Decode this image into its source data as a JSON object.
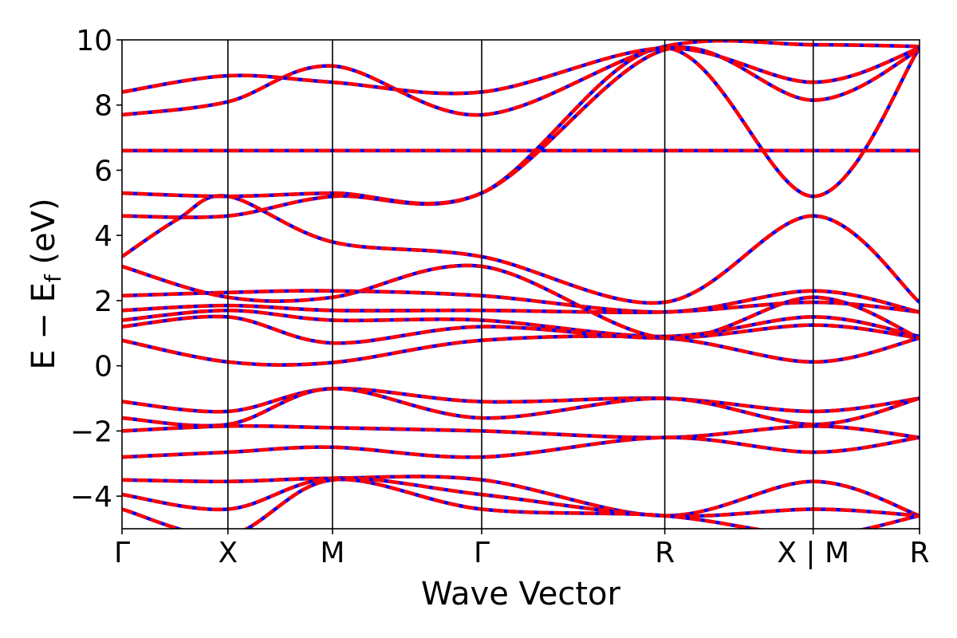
{
  "chart_data": {
    "type": "line",
    "title": "",
    "xlabel": "Wave Vector",
    "ylabel": "E − E",
    "ylabel_subscript": "f",
    "ylabel_unit": "(eV)",
    "ylim": [
      -5,
      10
    ],
    "yticks": [
      -4,
      -2,
      0,
      2,
      4,
      6,
      8,
      10
    ],
    "ytick_labels": [
      "−4",
      "−2",
      "0",
      "2",
      "4",
      "6",
      "8",
      "10"
    ],
    "xlim": [
      0,
      1
    ],
    "xticks": [
      {
        "x": 0.0,
        "label": "Γ"
      },
      {
        "x": 0.1328,
        "label": "X"
      },
      {
        "x": 0.2639,
        "label": "M"
      },
      {
        "x": 0.451,
        "label": "Γ"
      },
      {
        "x": 0.6806,
        "label": "R"
      },
      {
        "x": 0.8667,
        "label": "X | M"
      },
      {
        "x": 1.0,
        "label": "R"
      }
    ],
    "path_boundaries": [
      0.1328,
      0.2639,
      0.451,
      0.6806,
      0.8667
    ],
    "grid": false,
    "legend": "none",
    "series_styles": [
      {
        "color": "#0000ff",
        "linestyle": "solid"
      },
      {
        "color": "#ff0000",
        "linestyle": "dashed"
      }
    ],
    "bands": [
      {
        "x": [
          0,
          0.1328,
          0.2639,
          0.451,
          0.6806,
          0.8667,
          1.0
        ],
        "y": [
          6.6,
          6.6,
          6.6,
          6.6,
          6.6,
          6.6,
          6.6
        ]
      },
      {
        "x": [
          0,
          0.1328,
          0.2639,
          0.451,
          0.6806,
          0.8667,
          1.0
        ],
        "y": [
          0.78,
          0.12,
          0.1,
          0.78,
          0.85,
          0.12,
          0.85
        ]
      },
      {
        "x": [
          0,
          0.07,
          0.1328,
          0.2639,
          0.451,
          0.6806,
          0.8667,
          1.0
        ],
        "y": [
          3.35,
          4.5,
          5.2,
          3.8,
          3.35,
          1.95,
          4.6,
          1.95
        ]
      },
      {
        "x": [
          0,
          0.1328,
          0.2639,
          0.451,
          0.6806,
          0.8667,
          1.0
        ],
        "y": [
          4.6,
          4.6,
          5.2,
          5.3,
          9.75,
          5.2,
          9.75
        ]
      },
      {
        "x": [
          0,
          0.1328,
          0.2639,
          0.451,
          0.6806,
          0.8667,
          1.0
        ],
        "y": [
          5.3,
          5.2,
          5.3,
          5.3,
          9.7,
          8.15,
          9.7
        ]
      },
      {
        "x": [
          0,
          0.1328,
          0.2639,
          0.451,
          0.6806,
          0.8667,
          1.0
        ],
        "y": [
          7.7,
          8.1,
          9.2,
          7.7,
          9.8,
          9.85,
          9.8
        ]
      },
      {
        "x": [
          0,
          0.1328,
          0.2639,
          0.451,
          0.6806,
          0.8667,
          1.0
        ],
        "y": [
          8.4,
          8.9,
          8.7,
          8.4,
          9.75,
          8.7,
          9.75
        ]
      },
      {
        "x": [
          0,
          0.1328,
          0.2639,
          0.451,
          0.6806,
          0.8667,
          1.0
        ],
        "y": [
          2.15,
          2.25,
          2.3,
          2.15,
          1.65,
          2.3,
          1.65
        ]
      },
      {
        "x": [
          0,
          0.1328,
          0.2639,
          0.451,
          0.6806,
          0.8667,
          1.0
        ],
        "y": [
          1.7,
          1.85,
          1.7,
          1.7,
          1.65,
          1.95,
          1.65
        ]
      },
      {
        "x": [
          0,
          0.1328,
          0.2639,
          0.451,
          0.6806,
          0.8667,
          1.0
        ],
        "y": [
          1.4,
          1.7,
          1.4,
          1.4,
          0.9,
          1.5,
          0.9
        ]
      },
      {
        "x": [
          0,
          0.1328,
          0.2639,
          0.451,
          0.6806,
          0.8667,
          1.0
        ],
        "y": [
          1.2,
          1.5,
          0.7,
          1.2,
          0.85,
          1.25,
          0.85
        ]
      },
      {
        "x": [
          0,
          0.1328,
          0.2639,
          0.451,
          0.6806,
          0.8667,
          1.0
        ],
        "y": [
          3.05,
          2.1,
          2.1,
          3.05,
          0.85,
          2.1,
          0.85
        ]
      },
      {
        "x": [
          0,
          0.1328,
          0.2639,
          0.451,
          0.6806,
          0.8667,
          1.0
        ],
        "y": [
          -1.1,
          -1.4,
          -0.7,
          -1.1,
          -1.0,
          -1.4,
          -1.0
        ]
      },
      {
        "x": [
          0,
          0.1328,
          0.2639,
          0.451,
          0.6806,
          0.8667,
          1.0
        ],
        "y": [
          -1.6,
          -1.8,
          -0.7,
          -1.6,
          -1.0,
          -1.8,
          -1.0
        ]
      },
      {
        "x": [
          0,
          0.1328,
          0.2639,
          0.451,
          0.6806,
          0.8667,
          1.0
        ],
        "y": [
          -2.0,
          -1.85,
          -1.9,
          -2.0,
          -2.2,
          -1.85,
          -2.2
        ]
      },
      {
        "x": [
          0,
          0.1328,
          0.2639,
          0.451,
          0.6806,
          0.8667,
          1.0
        ],
        "y": [
          -2.8,
          -2.65,
          -2.5,
          -2.8,
          -2.2,
          -2.65,
          -2.2
        ]
      },
      {
        "x": [
          0,
          0.1328,
          0.2639,
          0.451,
          0.6806,
          0.8667,
          1.0
        ],
        "y": [
          -3.5,
          -3.55,
          -3.45,
          -3.5,
          -4.6,
          -3.55,
          -4.6
        ]
      },
      {
        "x": [
          0,
          0.1328,
          0.2639,
          0.451,
          0.6806,
          0.8667,
          1.0
        ],
        "y": [
          -3.95,
          -4.4,
          -3.45,
          -3.95,
          -4.6,
          -4.4,
          -4.6
        ]
      },
      {
        "x": [
          0,
          0.1328,
          0.2639,
          0.451,
          0.6806,
          0.8667,
          1.0
        ],
        "y": [
          -4.4,
          -5.2,
          -3.5,
          -4.4,
          -4.6,
          -5.2,
          -4.6
        ]
      }
    ]
  }
}
